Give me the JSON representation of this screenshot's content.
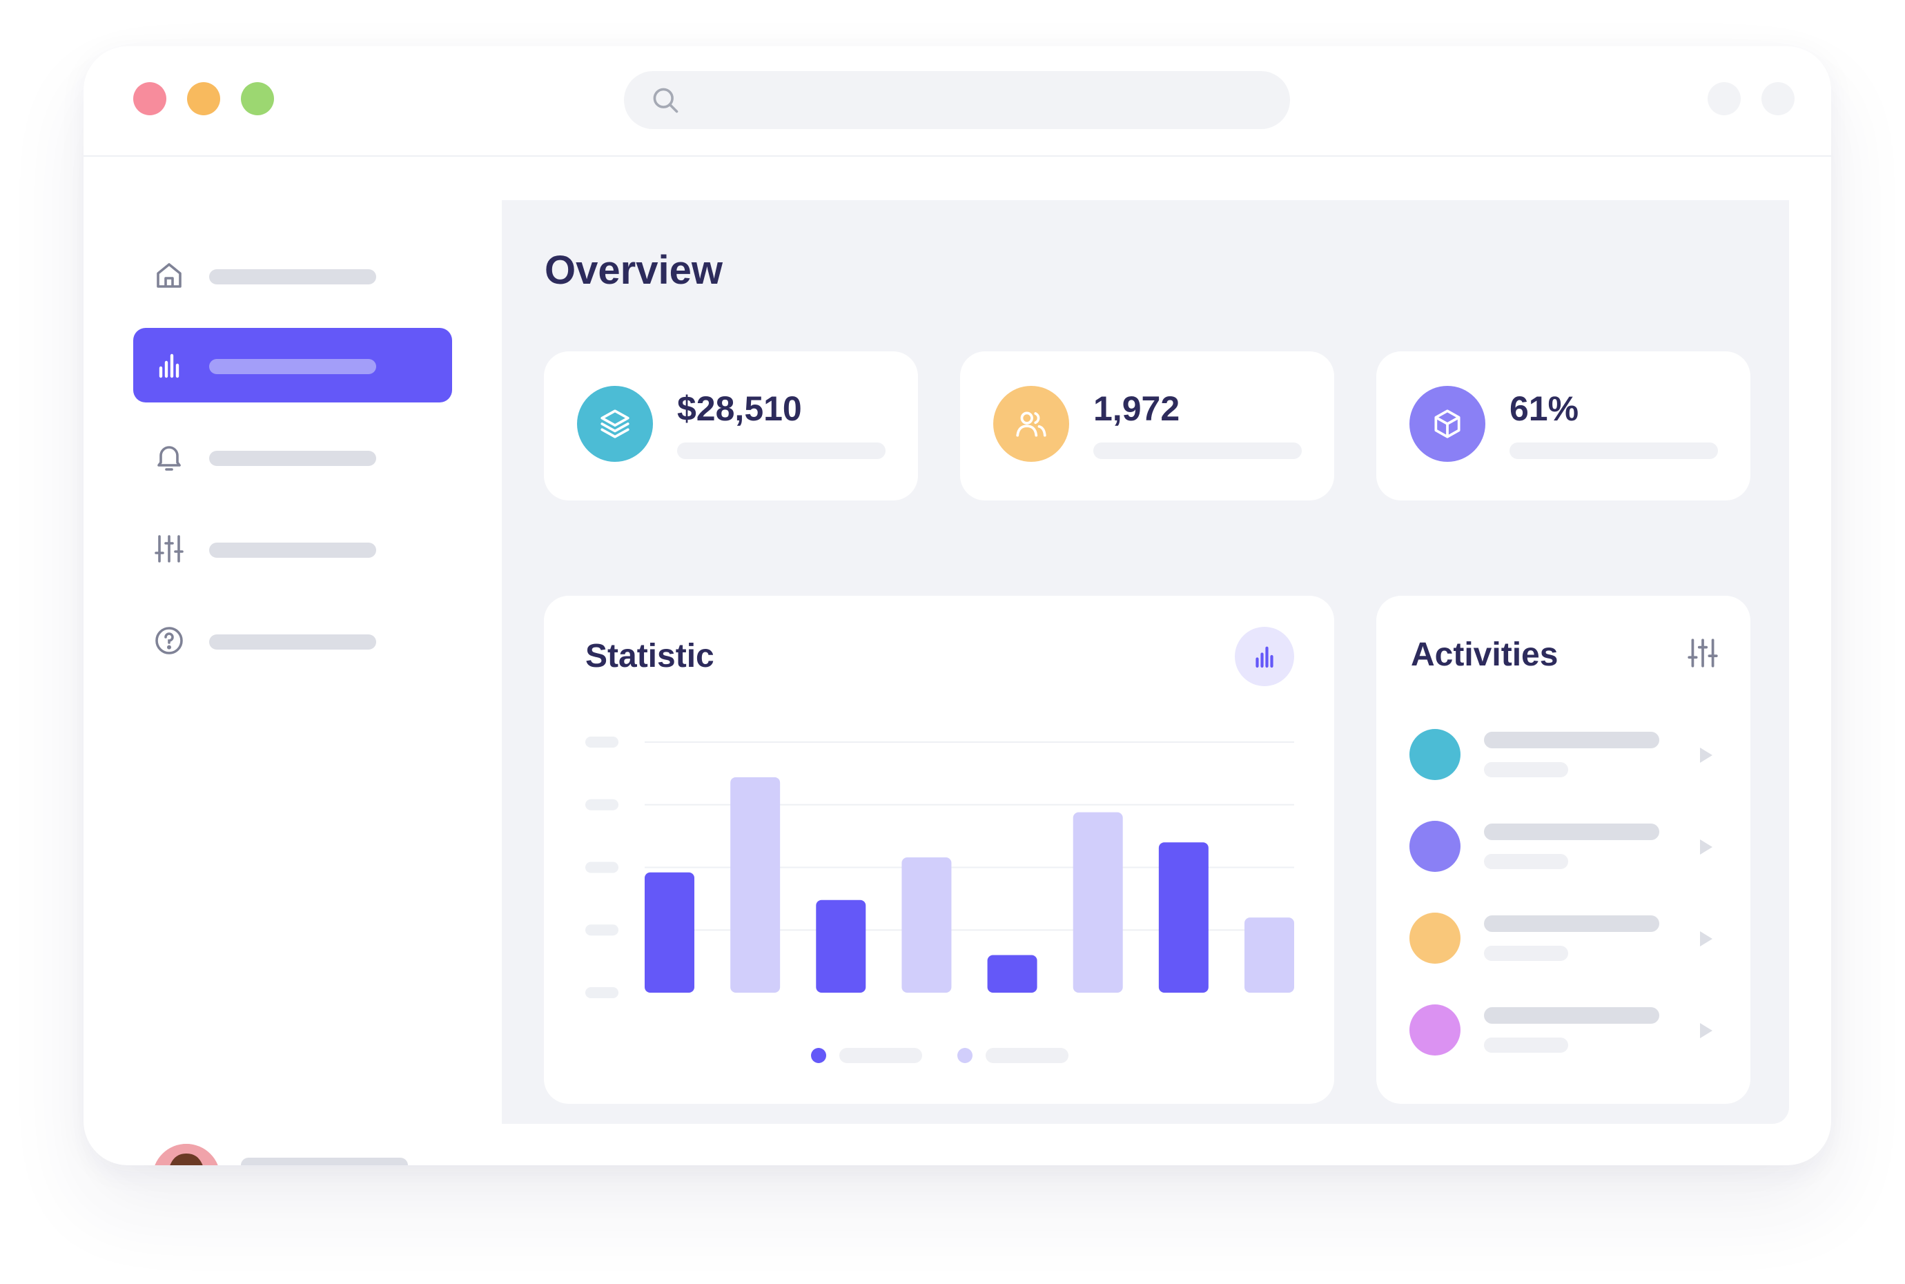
{
  "titlebar": {
    "buttons": [
      "close",
      "minimize",
      "maximize"
    ],
    "search": {
      "placeholder": "",
      "icon": "search-icon"
    }
  },
  "sidebar": {
    "items": [
      {
        "icon": "home-icon",
        "active": false
      },
      {
        "icon": "bar-chart-icon",
        "active": true
      },
      {
        "icon": "bell-icon",
        "active": false
      },
      {
        "icon": "sliders-icon",
        "active": false
      },
      {
        "icon": "help-circle-icon",
        "active": false
      }
    ],
    "profile": {
      "avatar": "avatar"
    }
  },
  "main": {
    "title": "Overview",
    "stats": [
      {
        "value": "$28,510",
        "icon": "layers-icon",
        "color": "#4cbcd5"
      },
      {
        "value": "1,972",
        "icon": "users-icon",
        "color": "#f9c77a"
      },
      {
        "value": "61%",
        "icon": "box-icon",
        "color": "#8a80f5"
      }
    ],
    "statistic": {
      "title": "Statistic",
      "icon": "bar-chart-icon"
    },
    "activities": {
      "title": "Activities",
      "icon": "sliders-icon",
      "items": [
        {
          "color": "#4cbcd5"
        },
        {
          "color": "#8a80f5"
        },
        {
          "color": "#f9c77a"
        },
        {
          "color": "#db92f2"
        }
      ]
    }
  },
  "chart_data": {
    "type": "bar",
    "categories": [
      "",
      "",
      "",
      "",
      "",
      "",
      "",
      ""
    ],
    "values": [
      48,
      86,
      37,
      54,
      15,
      72,
      60,
      30
    ],
    "series_colors": [
      "#6458f8",
      "#d1cefb",
      "#6458f8",
      "#d1cefb",
      "#6458f8",
      "#d1cefb",
      "#6458f8",
      "#d1cefb"
    ],
    "ylim": [
      0,
      100
    ],
    "grid": true,
    "legend": "bottom-center",
    "legend_colors": [
      "#6458f8",
      "#d1cefb"
    ]
  },
  "colors": {
    "accent": "#6458f8",
    "accent_light": "#d1cefb",
    "text_dark": "#2d2b5c",
    "placeholder": "#dcdee5",
    "background": "#f2f3f7"
  }
}
